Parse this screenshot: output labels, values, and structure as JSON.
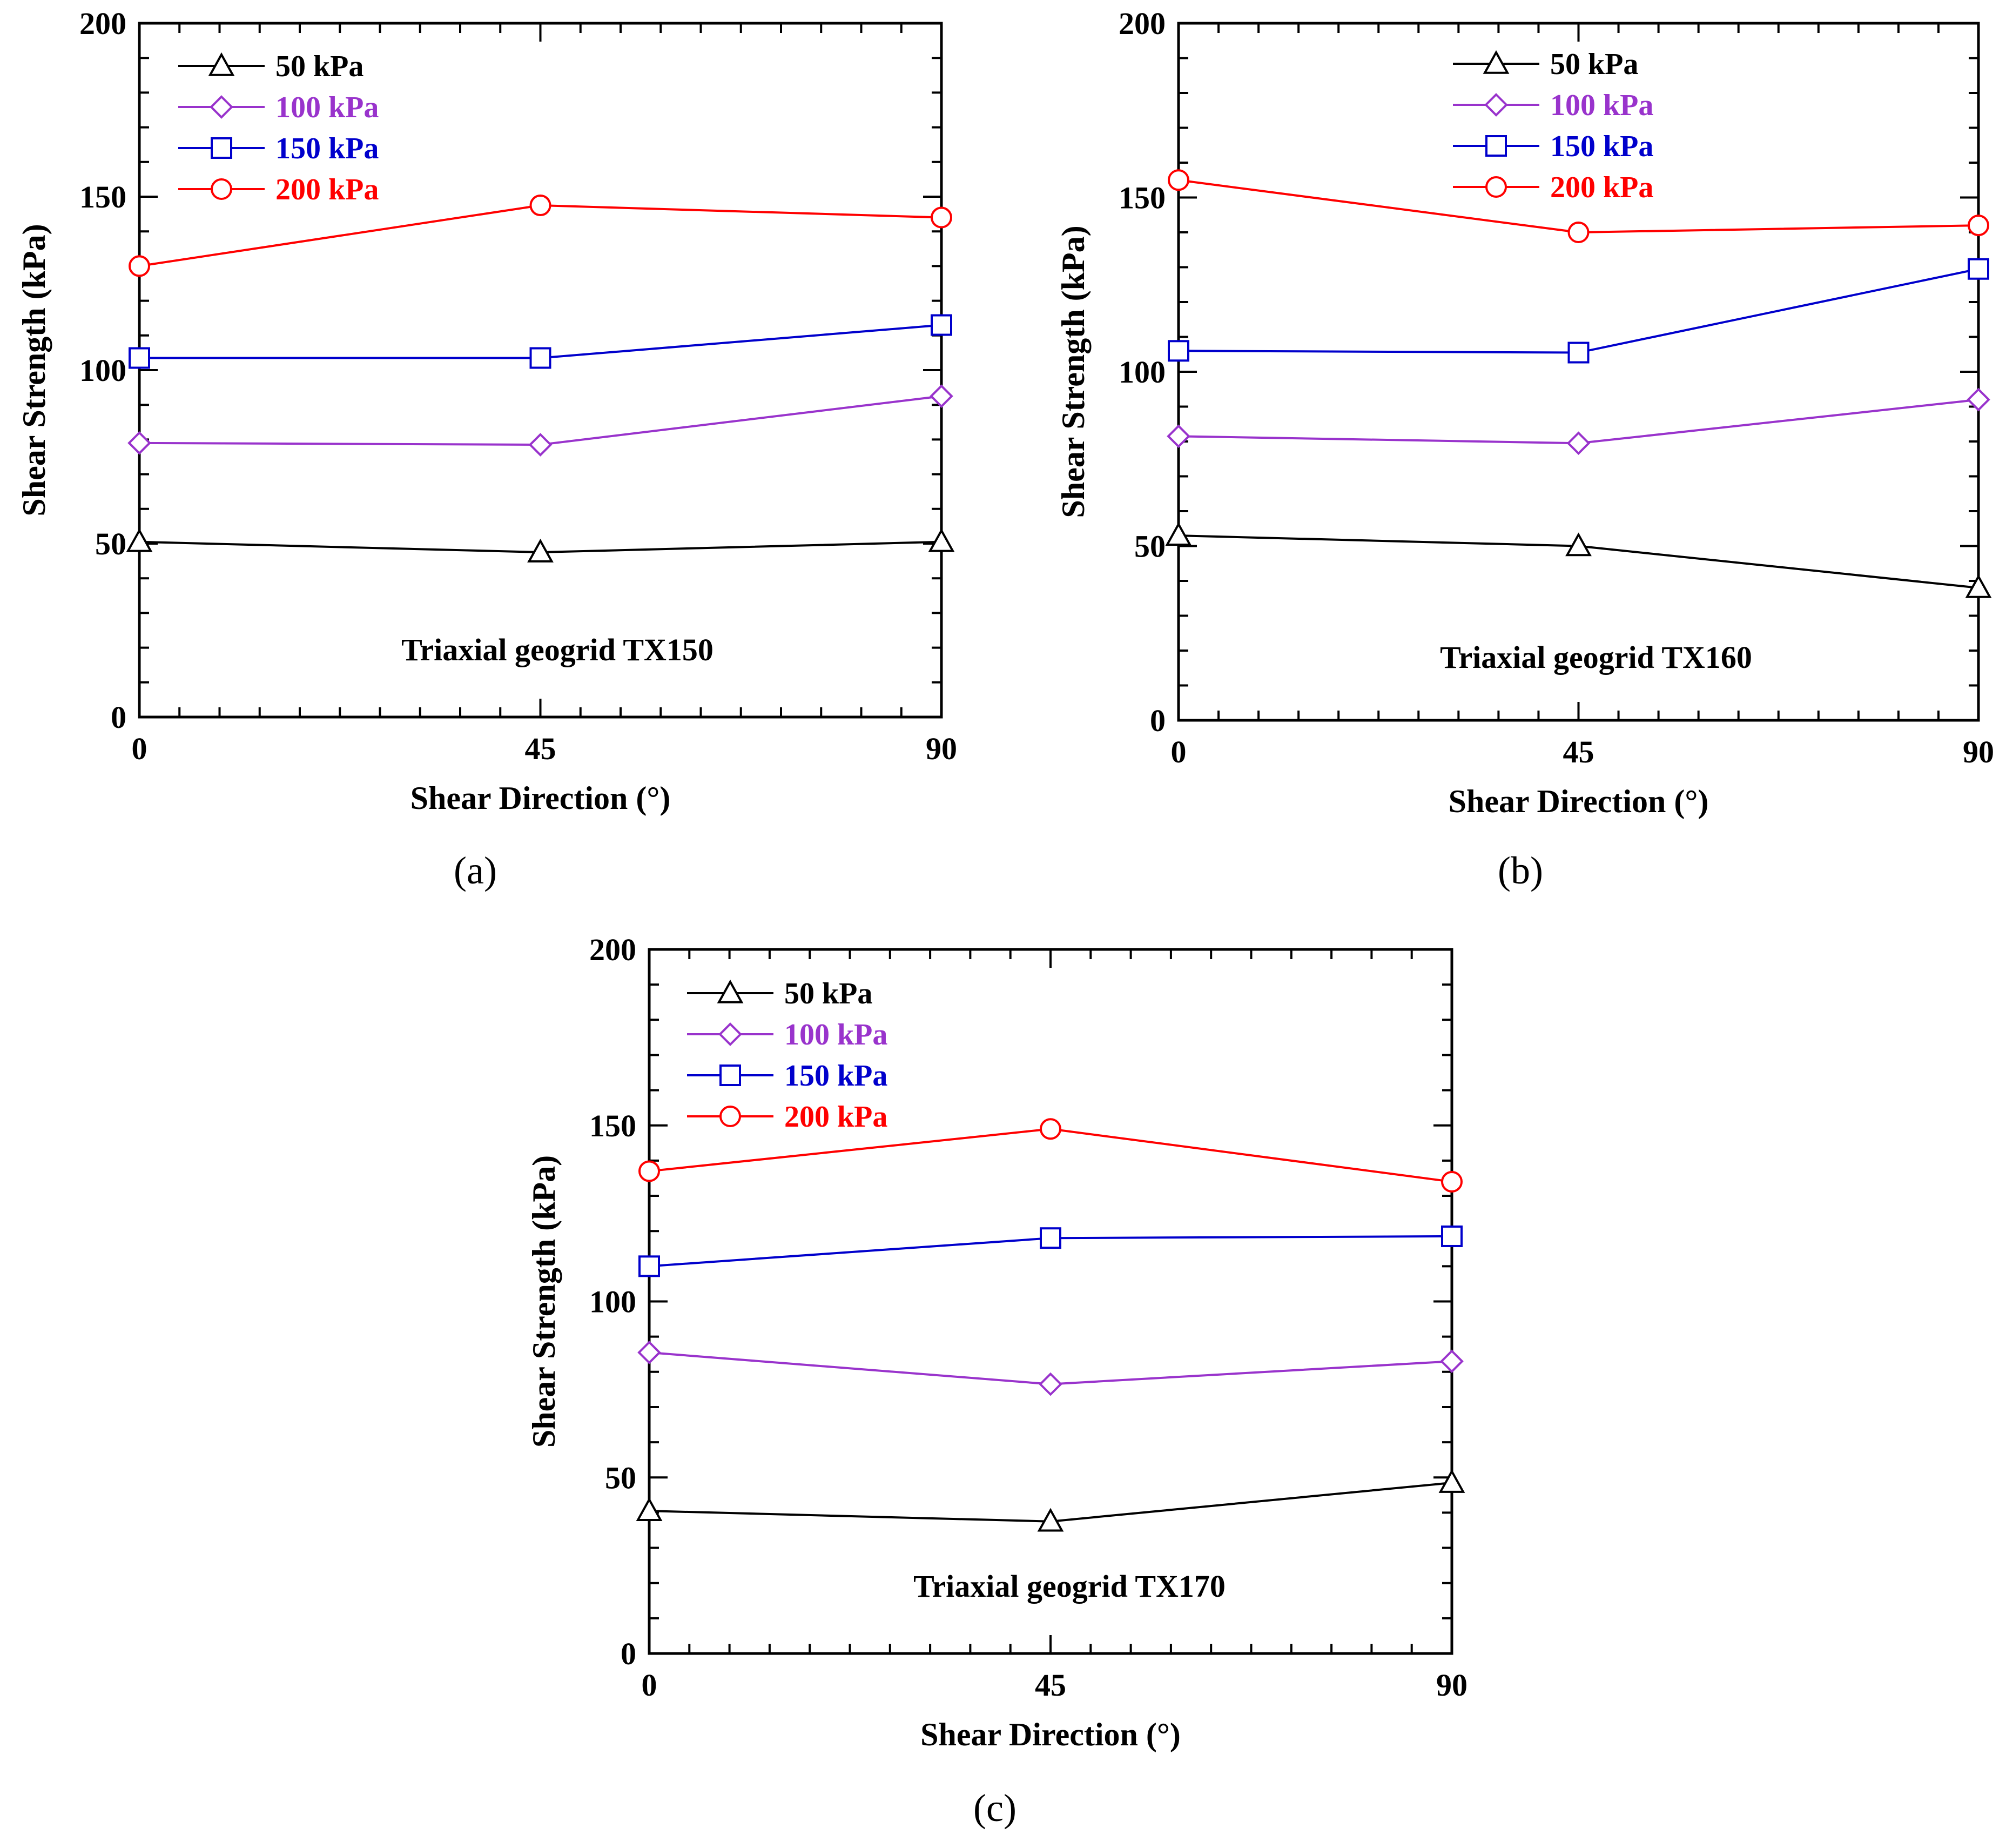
{
  "figure_name": "geogrid-shear-strength-figure",
  "colors": {
    "axes": "#000000",
    "series_50": "#000000",
    "series_100": "#9933cc",
    "series_150": "#0000cc",
    "series_200": "#ff0000"
  },
  "chart_data": [
    {
      "type": "line",
      "panel_label": "(a)",
      "annotation": "Triaxial geogrid TX150",
      "xlabel": "Shear Direction (°)",
      "ylabel": "Shear Strength (kPa)",
      "x": [
        0,
        45,
        90
      ],
      "xlim": [
        0,
        90
      ],
      "ylim": [
        0,
        200
      ],
      "xticks": [
        0,
        45,
        90
      ],
      "yticks": [
        0,
        50,
        100,
        150,
        200
      ],
      "legend_position": "top-left",
      "series": [
        {
          "name": "50 kPa",
          "marker": "triangle",
          "color": "#000000",
          "values": [
            50.5,
            47.5,
            50.5
          ]
        },
        {
          "name": "100 kPa",
          "marker": "diamond",
          "color": "#9933cc",
          "values": [
            79,
            78.5,
            92.5
          ]
        },
        {
          "name": "150 kPa",
          "marker": "square",
          "color": "#0000cc",
          "values": [
            103.5,
            103.5,
            113
          ]
        },
        {
          "name": "200 kPa",
          "marker": "circle",
          "color": "#ff0000",
          "values": [
            130,
            147.5,
            144
          ]
        }
      ]
    },
    {
      "type": "line",
      "panel_label": "(b)",
      "annotation": "Triaxial geogrid TX160",
      "xlabel": "Shear Direction (°)",
      "ylabel": "Shear Strength (kPa)",
      "x": [
        0,
        45,
        90
      ],
      "xlim": [
        0,
        90
      ],
      "ylim": [
        0,
        200
      ],
      "xticks": [
        0,
        45,
        90
      ],
      "yticks": [
        0,
        50,
        100,
        150,
        200
      ],
      "legend_position": "top-center",
      "series": [
        {
          "name": "50 kPa",
          "marker": "triangle",
          "color": "#000000",
          "values": [
            53,
            50,
            38
          ]
        },
        {
          "name": "100 kPa",
          "marker": "diamond",
          "color": "#9933cc",
          "values": [
            81.5,
            79.5,
            92
          ]
        },
        {
          "name": "150 kPa",
          "marker": "square",
          "color": "#0000cc",
          "values": [
            106,
            105.5,
            129.5
          ]
        },
        {
          "name": "200 kPa",
          "marker": "circle",
          "color": "#ff0000",
          "values": [
            155,
            140,
            142
          ]
        }
      ]
    },
    {
      "type": "line",
      "panel_label": "(c)",
      "annotation": "Triaxial geogrid TX170",
      "xlabel": "Shear Direction (°)",
      "ylabel": "Shear Strength (kPa)",
      "x": [
        0,
        45,
        90
      ],
      "xlim": [
        0,
        90
      ],
      "ylim": [
        0,
        200
      ],
      "xticks": [
        0,
        45,
        90
      ],
      "yticks": [
        0,
        50,
        100,
        150,
        200
      ],
      "legend_position": "top-left",
      "series": [
        {
          "name": "50 kPa",
          "marker": "triangle",
          "color": "#000000",
          "values": [
            40.5,
            37.5,
            48.5
          ]
        },
        {
          "name": "100 kPa",
          "marker": "diamond",
          "color": "#9933cc",
          "values": [
            85.5,
            76.5,
            83
          ]
        },
        {
          "name": "150 kPa",
          "marker": "square",
          "color": "#0000cc",
          "values": [
            110,
            118,
            118.5
          ]
        },
        {
          "name": "200 kPa",
          "marker": "circle",
          "color": "#ff0000",
          "values": [
            137,
            149,
            134
          ]
        }
      ]
    }
  ]
}
